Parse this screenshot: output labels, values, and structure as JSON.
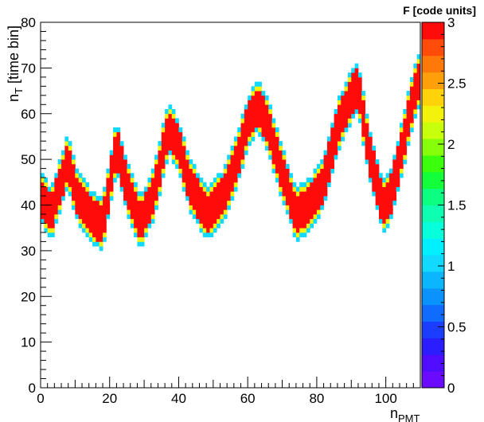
{
  "chart_data": {
    "type": "heatmap",
    "title": "",
    "xlabel": "n",
    "xlabel_sub": "PMT",
    "ylabel": "n",
    "ylabel_sub": "T",
    "ylabel_suffix": " [time bin]",
    "xlim": [
      0,
      110
    ],
    "ylim": [
      0,
      80
    ],
    "x_ticks": [
      "0",
      "20",
      "40",
      "60",
      "80",
      "100"
    ],
    "y_ticks": [
      "0",
      "10",
      "20",
      "30",
      "40",
      "50",
      "60",
      "70",
      "80"
    ],
    "colorbar": {
      "label": "F [code units]",
      "range": [
        0,
        3
      ],
      "ticks": [
        "0",
        "0.5",
        "1",
        "1.5",
        "2",
        "2.5",
        "3"
      ],
      "colors": [
        "#6a0aff",
        "#4f0dff",
        "#2a1dff",
        "#1a3dff",
        "#0f6cff",
        "#0a93ff",
        "#0bb6ff",
        "#11d9ff",
        "#00f0ff",
        "#07ffd9",
        "#0fffb2",
        "#0cff80",
        "#12ff3a",
        "#3cff0d",
        "#86ff0a",
        "#c8ff0a",
        "#f2f20a",
        "#ffd20a",
        "#ffa00a",
        "#ff780a",
        "#ff4c0a",
        "#ff0c0a"
      ]
    },
    "band": {
      "description_points_x": [
        0,
        3,
        8,
        10,
        15,
        18,
        22,
        25,
        29,
        33,
        37,
        40,
        43,
        48,
        53,
        57,
        60,
        63,
        66,
        70,
        74,
        78,
        82,
        86,
        90,
        92,
        95,
        99,
        101,
        104,
        108,
        110
      ],
      "center_y": [
        42,
        38,
        50,
        43,
        37,
        36,
        53,
        44,
        36,
        43,
        57,
        53,
        45,
        38,
        42,
        50,
        58,
        62,
        57,
        47,
        38,
        40,
        45,
        57,
        64,
        66,
        52,
        40,
        41,
        50,
        64,
        68
      ],
      "half_width": 4,
      "peak_value": 3,
      "edge_values": [
        2.8,
        2.2,
        1.0
      ]
    }
  }
}
